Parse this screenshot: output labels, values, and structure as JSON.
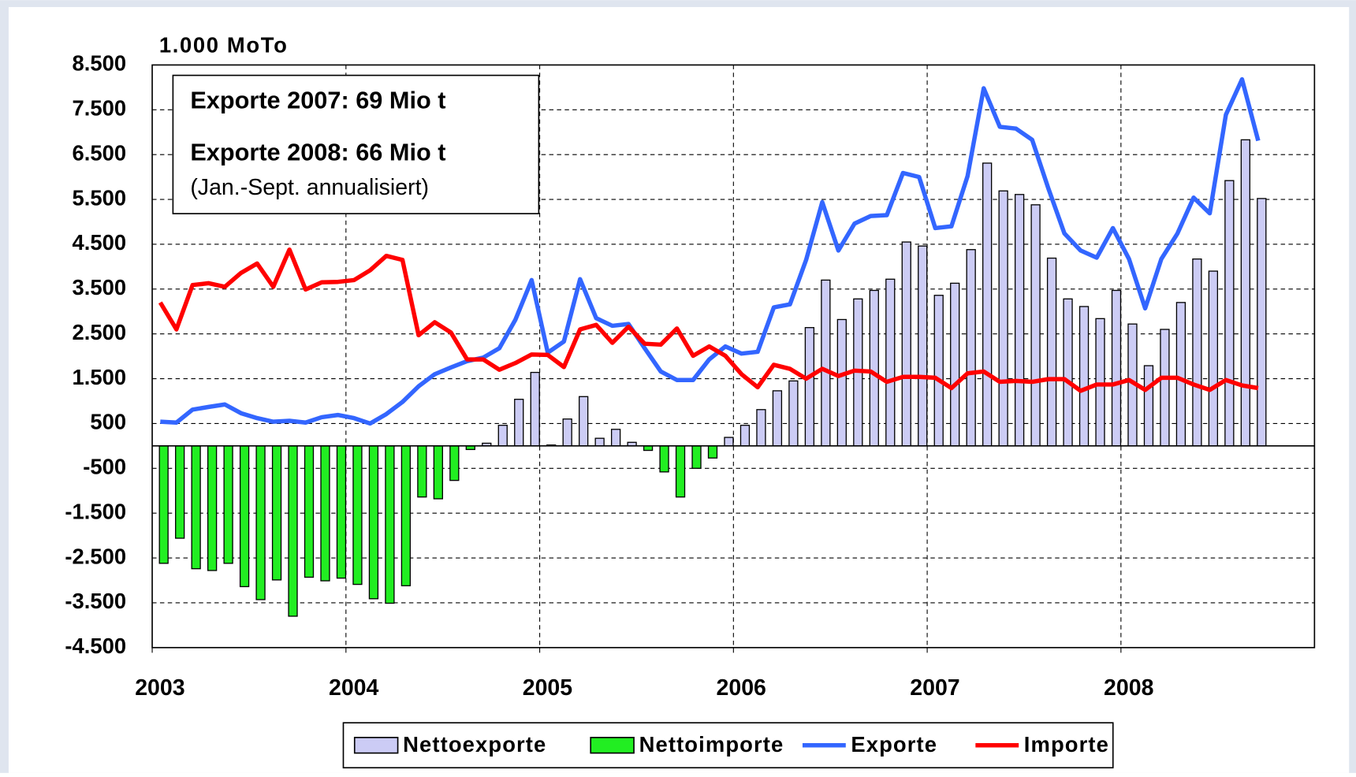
{
  "chart_data": {
    "type": "bar_line",
    "unit_label": "1.000 MoTo",
    "annotations": [
      "Exporte 2007: 69 Mio t",
      "Exporte 2008: 66 Mio t",
      "(Jan.-Sept. annualisiert)"
    ],
    "categories": [
      "2003",
      null,
      null,
      null,
      null,
      null,
      null,
      null,
      null,
      null,
      null,
      null,
      "2004",
      null,
      null,
      null,
      null,
      null,
      null,
      null,
      null,
      null,
      null,
      null,
      "2005",
      null,
      null,
      null,
      null,
      null,
      null,
      null,
      null,
      null,
      null,
      null,
      "2006",
      null,
      null,
      null,
      null,
      null,
      null,
      null,
      null,
      null,
      null,
      null,
      "2007",
      null,
      null,
      null,
      null,
      null,
      null,
      null,
      null,
      null,
      null,
      null,
      "2008",
      null,
      null,
      null,
      null,
      null,
      null,
      null,
      null
    ],
    "series": [
      {
        "name": "Nettoexporte",
        "kind": "bar",
        "color": "#ccccf5",
        "values": [
          null,
          null,
          null,
          null,
          null,
          null,
          null,
          null,
          null,
          null,
          null,
          null,
          null,
          null,
          null,
          null,
          null,
          null,
          null,
          null,
          60,
          460,
          1040,
          1640,
          20,
          600,
          1100,
          170,
          370,
          80,
          null,
          null,
          null,
          null,
          null,
          190,
          460,
          810,
          1230,
          1450,
          2640,
          3700,
          2820,
          3280,
          3470,
          3720,
          4550,
          4460,
          3360,
          3630,
          4380,
          6310,
          5690,
          5610,
          5380,
          4190,
          3280,
          3110,
          2840,
          3470,
          2720,
          1790,
          2600,
          3200,
          4170,
          3900,
          5920,
          6830,
          5520
        ]
      },
      {
        "name": "Nettoimporte",
        "kind": "bar",
        "color": "#22ee22",
        "values": [
          -2620,
          -2060,
          -2740,
          -2780,
          -2620,
          -3140,
          -3430,
          -2990,
          -3800,
          -2930,
          -3010,
          -2950,
          -3090,
          -3410,
          -3510,
          -3120,
          -1140,
          -1180,
          -770,
          -80,
          null,
          null,
          null,
          null,
          null,
          null,
          null,
          null,
          null,
          null,
          -100,
          -580,
          -1140,
          -500,
          -270,
          null,
          null,
          null,
          null,
          null,
          null,
          null,
          null,
          null,
          null,
          null,
          null,
          null,
          null,
          null,
          null,
          null,
          null,
          null,
          null,
          null,
          null,
          null,
          null,
          null,
          null,
          null,
          null,
          null,
          null,
          null,
          null,
          null,
          null
        ]
      },
      {
        "name": "Exporte",
        "kind": "line",
        "color": "#3366ff",
        "values": [
          540,
          520,
          810,
          870,
          925,
          730,
          620,
          540,
          560,
          520,
          640,
          690,
          620,
          500,
          710,
          980,
          1330,
          1600,
          1750,
          1890,
          1970,
          2180,
          2820,
          3700,
          2080,
          2330,
          3720,
          2850,
          2680,
          2720,
          2180,
          1660,
          1470,
          1470,
          1930,
          2220,
          2060,
          2100,
          3090,
          3160,
          4150,
          5440,
          4360,
          4960,
          5130,
          5150,
          6090,
          6000,
          4860,
          4900,
          6020,
          7980,
          7120,
          7080,
          6830,
          5750,
          4740,
          4360,
          4200,
          4860,
          4170,
          3070,
          4170,
          4740,
          5540,
          5190,
          7390,
          8180,
          6810
        ]
      },
      {
        "name": "Importe",
        "kind": "line",
        "color": "#ff0000",
        "values": [
          3200,
          2600,
          3590,
          3630,
          3550,
          3860,
          4070,
          3550,
          4380,
          3490,
          3650,
          3660,
          3700,
          3920,
          4240,
          4150,
          2470,
          2760,
          2530,
          1930,
          1930,
          1700,
          1850,
          2040,
          2030,
          1760,
          2600,
          2700,
          2300,
          2660,
          2280,
          2260,
          2620,
          2010,
          2220,
          2010,
          1600,
          1310,
          1810,
          1720,
          1500,
          1720,
          1560,
          1680,
          1660,
          1430,
          1540,
          1540,
          1520,
          1290,
          1620,
          1660,
          1430,
          1450,
          1430,
          1490,
          1490,
          1230,
          1370,
          1370,
          1470,
          1250,
          1520,
          1520,
          1370,
          1250,
          1470,
          1350,
          1290
        ]
      }
    ],
    "ylim": [
      -4500,
      8500
    ],
    "yticks": [
      {
        "value": 8500,
        "label": "8.500"
      },
      {
        "value": 7500,
        "label": "7.500"
      },
      {
        "value": 6500,
        "label": "6.500"
      },
      {
        "value": 5500,
        "label": "5.500"
      },
      {
        "value": 4500,
        "label": "4.500"
      },
      {
        "value": 3500,
        "label": "3.500"
      },
      {
        "value": 2500,
        "label": "2.500"
      },
      {
        "value": 1500,
        "label": "1.500"
      },
      500,
      -500,
      {
        "value": -1500,
        "label": "-1.500"
      },
      {
        "value": -2500,
        "label": "-2.500"
      },
      {
        "value": -3500,
        "label": "-3.500"
      },
      {
        "value": -4500,
        "label": "-4.500"
      }
    ],
    "grid": true,
    "legend": "bottom"
  }
}
